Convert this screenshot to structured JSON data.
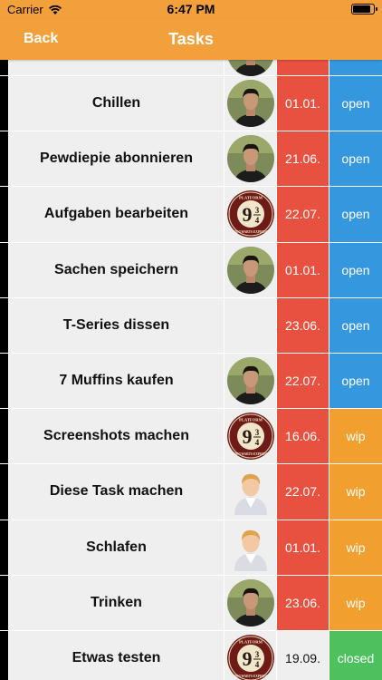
{
  "status_bar": {
    "carrier": "Carrier",
    "time": "6:47 PM"
  },
  "nav": {
    "back_label": "Back",
    "title": "Tasks"
  },
  "colors": {
    "nav_bg": "#f2a03b",
    "overdue_red": "#e8503f",
    "open_blue": "#3597de",
    "wip_orange": "#f1a02f",
    "closed_green": "#4ec15f",
    "cell_bg": "#efefef"
  },
  "tasks": [
    {
      "title": "",
      "avatar": "person-photo",
      "date": "",
      "date_style": "red",
      "status": "",
      "status_style": "open"
    },
    {
      "title": "Chillen",
      "avatar": "person-photo",
      "date": "01.01.",
      "date_style": "red",
      "status": "open",
      "status_style": "open"
    },
    {
      "title": "Pewdiepie abonnieren",
      "avatar": "person-photo",
      "date": "21.06.",
      "date_style": "red",
      "status": "open",
      "status_style": "open"
    },
    {
      "title": "Aufgaben bearbeiten",
      "avatar": "platform-logo",
      "date": "22.07.",
      "date_style": "red",
      "status": "open",
      "status_style": "open"
    },
    {
      "title": "Sachen speichern",
      "avatar": "person-photo",
      "date": "01.01.",
      "date_style": "red",
      "status": "open",
      "status_style": "open"
    },
    {
      "title": "T-Series dissen",
      "avatar": "none",
      "date": "23.06.",
      "date_style": "red",
      "status": "open",
      "status_style": "open"
    },
    {
      "title": "7 Muffins kaufen",
      "avatar": "person-photo",
      "date": "22.07.",
      "date_style": "red",
      "status": "open",
      "status_style": "open"
    },
    {
      "title": "Screenshots machen",
      "avatar": "platform-logo",
      "date": "16.06.",
      "date_style": "red",
      "status": "wip",
      "status_style": "wip"
    },
    {
      "title": "Diese Task machen",
      "avatar": "default-user",
      "date": "22.07.",
      "date_style": "red",
      "status": "wip",
      "status_style": "wip"
    },
    {
      "title": "Schlafen",
      "avatar": "default-user",
      "date": "01.01.",
      "date_style": "red",
      "status": "wip",
      "status_style": "wip"
    },
    {
      "title": "Trinken",
      "avatar": "person-photo",
      "date": "23.06.",
      "date_style": "red",
      "status": "wip",
      "status_style": "wip"
    },
    {
      "title": "Etwas testen",
      "avatar": "platform-logo",
      "date": "19.09.",
      "date_style": "neutral",
      "status": "closed",
      "status_style": "closed"
    }
  ],
  "platform_logo": {
    "big": "9",
    "top": "3",
    "bottom": "4",
    "ring_top": "PLATFORM",
    "ring_bottom": "HOGWARTS EXPRESS"
  }
}
